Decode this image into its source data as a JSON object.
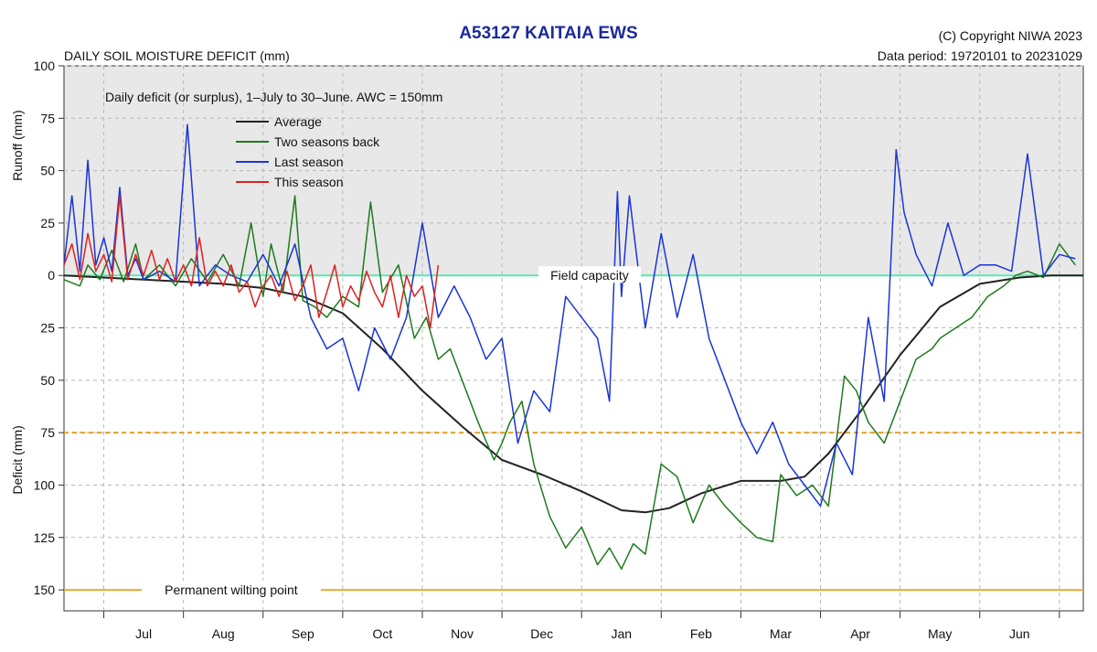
{
  "header": {
    "title": "A53127  KAITAIA EWS",
    "subtitle": "DAILY SOIL MOISTURE DEFICIT (mm)",
    "copyright": "(C) Copyright NIWA  2023",
    "data_period": "Data period:  19720101  to  20231029"
  },
  "chart_data": {
    "type": "line",
    "description": "Daily deficit (or surplus), 1–July to 30–June.  AWC = 150mm",
    "ylabel_top": "Runoff (mm)",
    "ylabel_bottom": "Deficit (mm)",
    "ylim": [
      100,
      -160
    ],
    "xlim": [
      0,
      12.8
    ],
    "month_labels": [
      "Jul",
      "Aug",
      "Sep",
      "Oct",
      "Nov",
      "Dec",
      "Jan",
      "Feb",
      "Mar",
      "Apr",
      "May",
      "Jun"
    ],
    "y_ticks": [
      100,
      75,
      50,
      25,
      0,
      -25,
      -50,
      -75,
      -100,
      -125,
      -150
    ],
    "y_tick_labels": [
      "100",
      "75",
      "50",
      "25",
      "0",
      "25",
      "50",
      "75",
      "100",
      "125",
      "150"
    ],
    "reference_lines": [
      {
        "label": "Field capacity",
        "y": 0,
        "color": "#5ce8b0"
      },
      {
        "label": "",
        "y": -75,
        "color": "#e8a020"
      },
      {
        "label": "Permanent wilting point",
        "y": -150,
        "color": "#f0a830"
      }
    ],
    "grid": true,
    "legend_position": "top-left",
    "series": [
      {
        "name": "Average",
        "color": "#222222",
        "x": [
          0.0,
          1.0,
          2.0,
          2.5,
          3.0,
          3.5,
          4.0,
          4.5,
          5.0,
          5.5,
          6.0,
          6.5,
          7.0,
          7.3,
          7.6,
          8.0,
          8.5,
          9.0,
          9.3,
          9.6,
          10.0,
          10.5,
          11.0,
          11.5,
          12.0,
          12.4,
          12.8
        ],
        "y": [
          0,
          -2,
          -4,
          -6,
          -10,
          -18,
          -35,
          -55,
          -72,
          -88,
          -95,
          -103,
          -112,
          -113,
          -111,
          -104,
          -98,
          -98,
          -96,
          -85,
          -65,
          -38,
          -15,
          -4,
          -1,
          0,
          0
        ]
      },
      {
        "name": "Two seasons back",
        "color": "#1e7a1e",
        "x": [
          0.0,
          0.2,
          0.3,
          0.45,
          0.6,
          0.75,
          0.9,
          1.0,
          1.2,
          1.4,
          1.6,
          1.8,
          2.0,
          2.2,
          2.35,
          2.5,
          2.6,
          2.75,
          2.9,
          3.0,
          3.15,
          3.3,
          3.5,
          3.7,
          3.85,
          4.0,
          4.2,
          4.4,
          4.55,
          4.7,
          4.85,
          5.0,
          5.2,
          5.4,
          5.5,
          5.6,
          5.75,
          5.9,
          6.1,
          6.3,
          6.5,
          6.7,
          6.85,
          7.0,
          7.15,
          7.3,
          7.5,
          7.7,
          7.9,
          8.1,
          8.3,
          8.5,
          8.7,
          8.9,
          9.0,
          9.2,
          9.4,
          9.6,
          9.8,
          9.95,
          10.1,
          10.3,
          10.5,
          10.7,
          10.9,
          11.0,
          11.2,
          11.4,
          11.6,
          11.8,
          11.95,
          12.1,
          12.3,
          12.5,
          12.7
        ],
        "y": [
          -2,
          -5,
          5,
          -2,
          12,
          -3,
          15,
          -2,
          5,
          -5,
          8,
          -3,
          10,
          -5,
          25,
          -10,
          15,
          -8,
          38,
          -12,
          -15,
          -20,
          -10,
          -15,
          35,
          -8,
          5,
          -30,
          -20,
          -40,
          -35,
          -50,
          -70,
          -88,
          -80,
          -70,
          -60,
          -90,
          -115,
          -130,
          -120,
          -138,
          -130,
          -140,
          -128,
          -133,
          -90,
          -96,
          -118,
          -100,
          -110,
          -118,
          -125,
          -127,
          -95,
          -105,
          -100,
          -110,
          -48,
          -55,
          -70,
          -80,
          -60,
          -40,
          -35,
          -30,
          -25,
          -20,
          -10,
          -5,
          0,
          2,
          -1,
          15,
          5
        ]
      },
      {
        "name": "Last season",
        "color": "#1a35d6",
        "x": [
          0.0,
          0.1,
          0.2,
          0.3,
          0.4,
          0.5,
          0.6,
          0.7,
          0.8,
          0.9,
          1.0,
          1.2,
          1.4,
          1.55,
          1.7,
          1.9,
          2.1,
          2.3,
          2.5,
          2.7,
          2.9,
          3.1,
          3.3,
          3.5,
          3.7,
          3.9,
          4.1,
          4.3,
          4.5,
          4.7,
          4.9,
          5.1,
          5.3,
          5.5,
          5.7,
          5.9,
          6.1,
          6.3,
          6.5,
          6.7,
          6.85,
          6.95,
          7.0,
          7.1,
          7.3,
          7.5,
          7.7,
          7.9,
          8.1,
          8.3,
          8.5,
          8.7,
          8.9,
          9.1,
          9.3,
          9.5,
          9.7,
          9.9,
          10.1,
          10.3,
          10.45,
          10.55,
          10.7,
          10.9,
          11.1,
          11.3,
          11.5,
          11.7,
          11.9,
          12.1,
          12.3,
          12.5,
          12.7
        ],
        "y": [
          5,
          38,
          2,
          55,
          5,
          18,
          2,
          42,
          0,
          8,
          -2,
          2,
          -3,
          72,
          -5,
          5,
          0,
          -3,
          10,
          -5,
          15,
          -20,
          -35,
          -30,
          -55,
          -25,
          -40,
          -20,
          25,
          -20,
          -5,
          -20,
          -40,
          -30,
          -80,
          -55,
          -65,
          -10,
          -20,
          -30,
          -60,
          40,
          -10,
          38,
          -25,
          20,
          -20,
          10,
          -30,
          -50,
          -70,
          -85,
          -70,
          -90,
          -100,
          -110,
          -80,
          -95,
          -20,
          -60,
          60,
          30,
          10,
          -5,
          25,
          0,
          5,
          5,
          2,
          58,
          0,
          10,
          8
        ]
      },
      {
        "name": "This season",
        "color": "#e02020",
        "x": [
          0.0,
          0.1,
          0.2,
          0.3,
          0.4,
          0.5,
          0.6,
          0.7,
          0.8,
          0.9,
          1.0,
          1.1,
          1.2,
          1.3,
          1.4,
          1.5,
          1.6,
          1.7,
          1.8,
          1.9,
          2.0,
          2.1,
          2.2,
          2.3,
          2.4,
          2.5,
          2.6,
          2.7,
          2.8,
          2.9,
          3.0,
          3.1,
          3.2,
          3.3,
          3.4,
          3.5,
          3.6,
          3.7,
          3.8,
          3.9,
          4.0,
          4.1,
          4.2,
          4.3,
          4.4,
          4.5,
          4.6,
          4.7
        ],
        "y": [
          5,
          15,
          -2,
          20,
          2,
          10,
          -3,
          38,
          -2,
          10,
          0,
          12,
          -2,
          8,
          -3,
          5,
          -5,
          18,
          -5,
          2,
          -5,
          5,
          -8,
          -3,
          -15,
          -5,
          0,
          -10,
          2,
          -12,
          -5,
          5,
          -20,
          -8,
          5,
          -15,
          -5,
          -12,
          2,
          -8,
          -15,
          0,
          -20,
          0,
          -10,
          -5,
          -25,
          5
        ]
      }
    ]
  }
}
